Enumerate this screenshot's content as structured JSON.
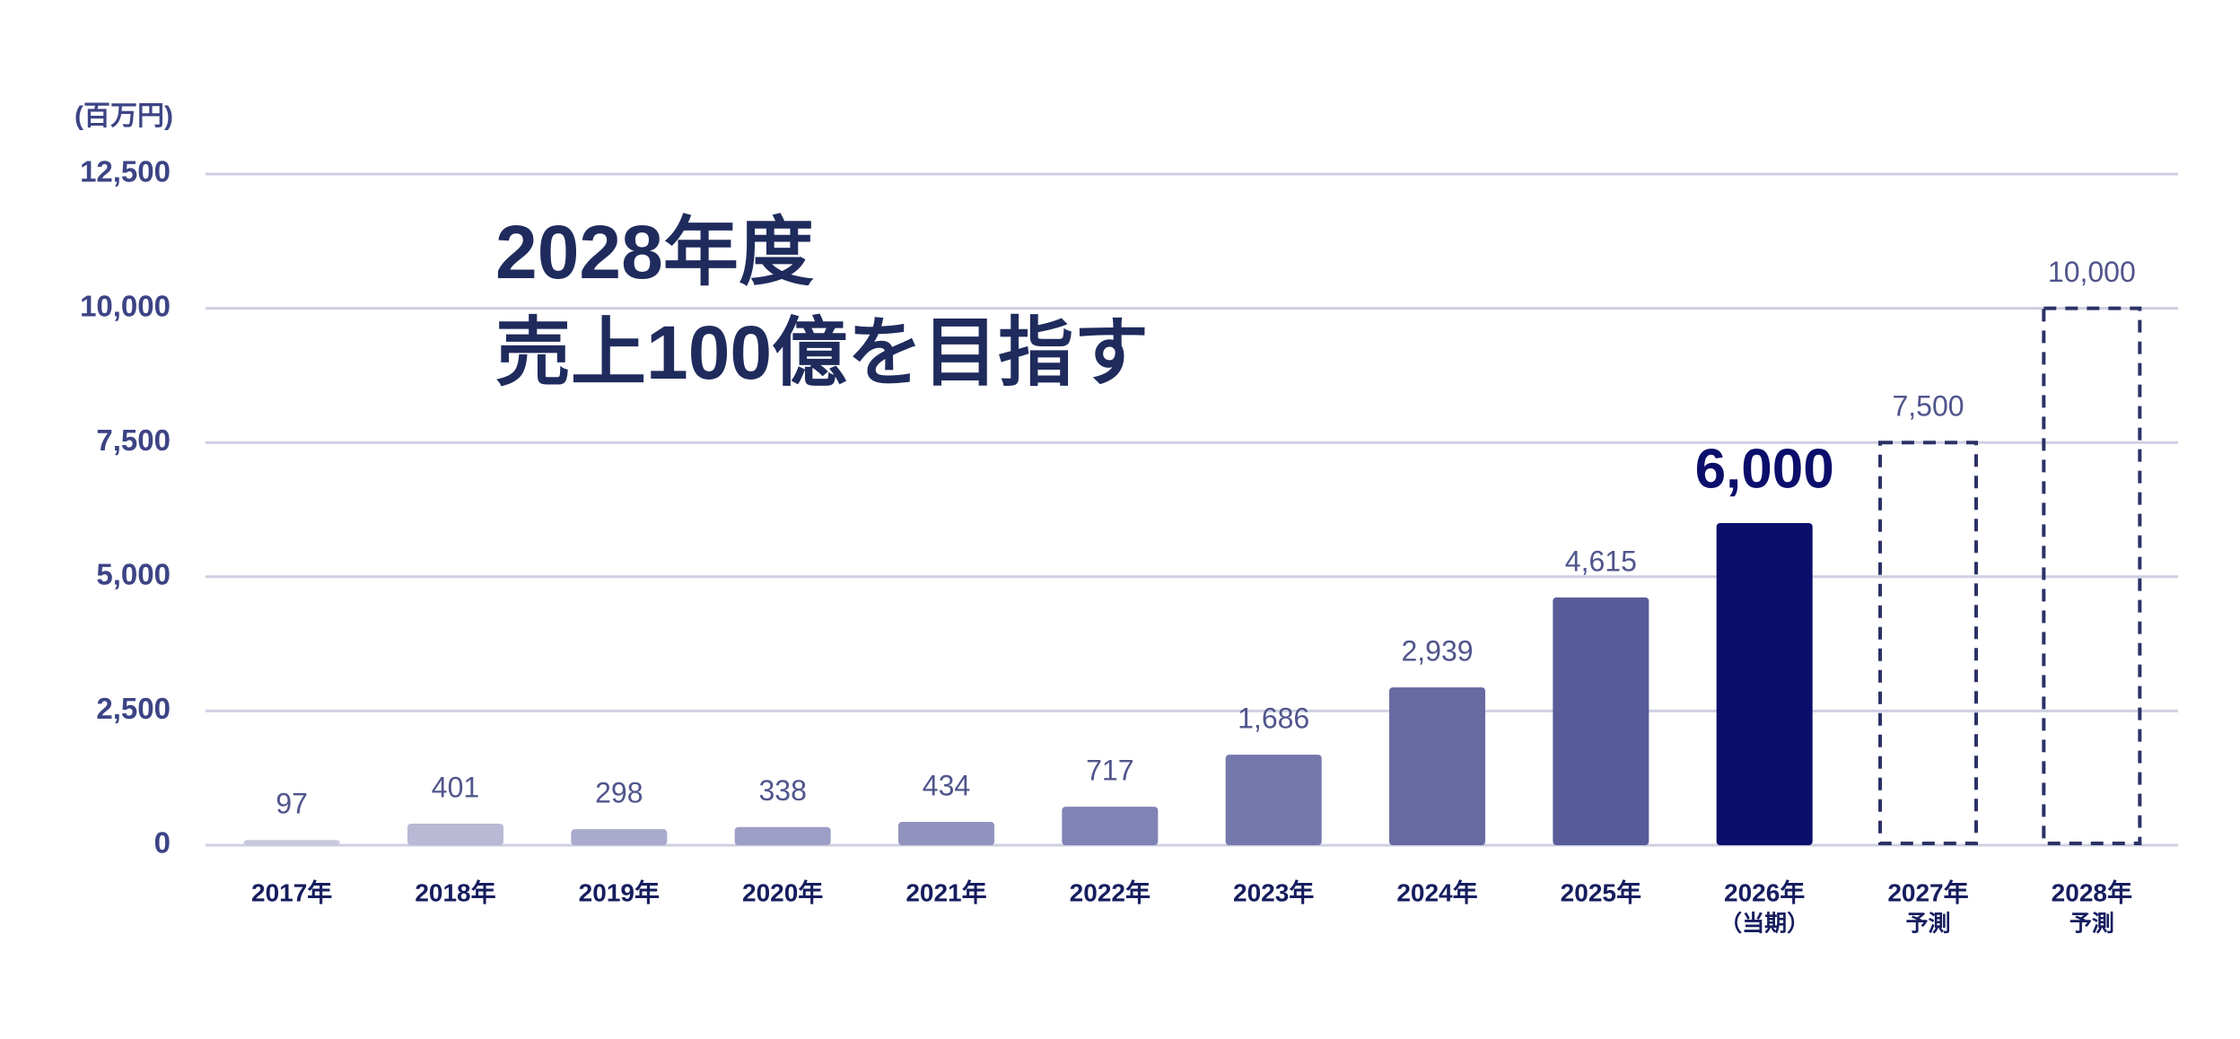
{
  "chart_data": {
    "type": "bar",
    "title": [
      "2028年度",
      "売上100億を目指す"
    ],
    "y_axis_label": "(百万円)",
    "categories": [
      "2017年",
      "2018年",
      "2019年",
      "2020年",
      "2021年",
      "2022年",
      "2023年",
      "2024年",
      "2025年",
      "2026年",
      "2027年",
      "2028年"
    ],
    "category_notes": [
      null,
      null,
      null,
      null,
      null,
      null,
      null,
      null,
      null,
      "（当期）",
      "予測",
      "予測"
    ],
    "values": [
      97,
      401,
      298,
      338,
      434,
      717,
      1686,
      2939,
      4615,
      6000,
      7500,
      10000
    ],
    "value_labels": [
      "97",
      "401",
      "298",
      "338",
      "434",
      "717",
      "1,686",
      "2,939",
      "4,615",
      "6,000",
      "7,500",
      "10,000"
    ],
    "colors": [
      "#c9c9de",
      "#b9b9d5",
      "#aaaacd",
      "#9e9fc6",
      "#9192be",
      "#8083b6",
      "#7477ab",
      "#676ba2",
      "#575c98",
      "#0b0f6b",
      "#2b3266",
      "#2b3266"
    ],
    "dashed": [
      false,
      false,
      false,
      false,
      false,
      false,
      false,
      false,
      false,
      false,
      true,
      true
    ],
    "highlight": [
      false,
      false,
      false,
      false,
      false,
      false,
      false,
      false,
      false,
      true,
      false,
      false
    ],
    "ylim": [
      0,
      12500
    ],
    "yticks": [
      0,
      {
        "value": 2500,
        "label": "2,500"
      },
      {
        "value": 5000,
        "label": "5,000"
      },
      {
        "value": 7500,
        "label": "7,500"
      },
      {
        "value": 10000,
        "label": "10,000"
      },
      {
        "value": 12500,
        "label": "12,500"
      }
    ],
    "grid": true
  }
}
